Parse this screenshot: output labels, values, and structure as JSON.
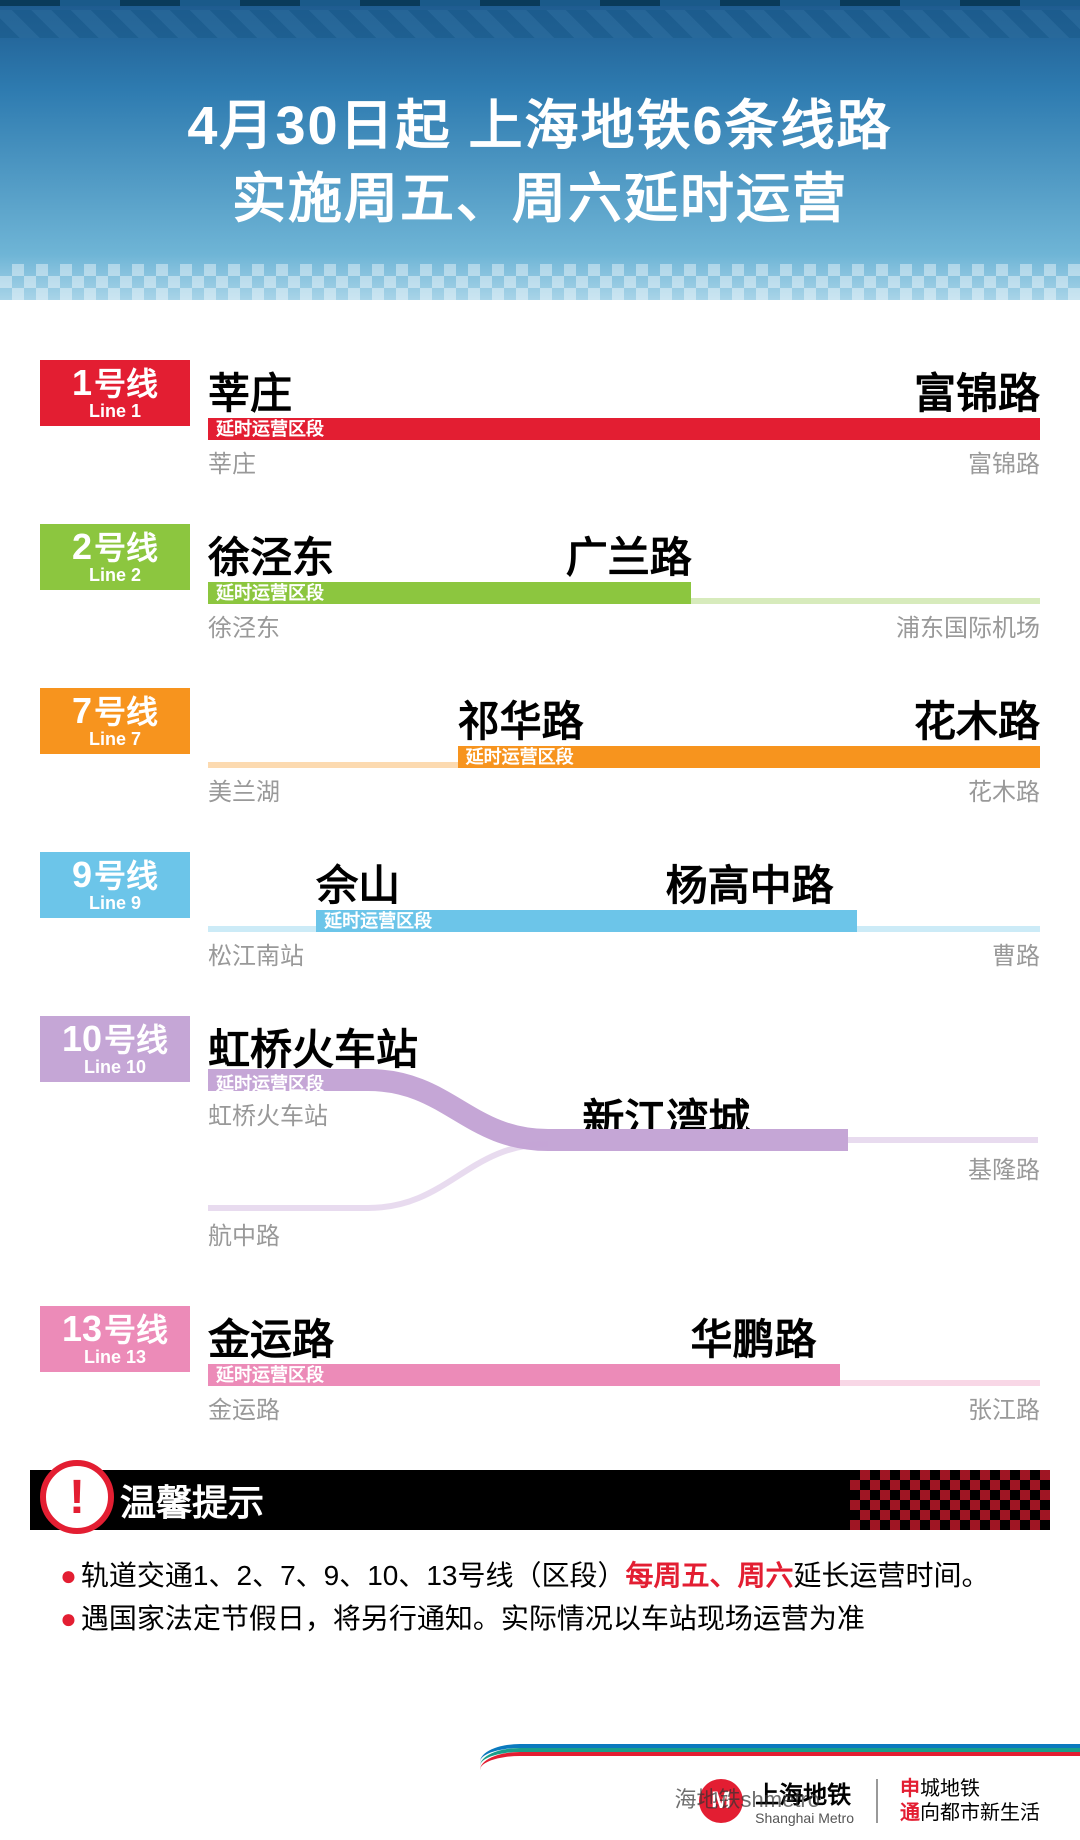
{
  "header": {
    "title_line1": "4月30日起  上海地铁6条线路",
    "title_line2": "实施周五、周六延时运营"
  },
  "ext_label": "延时运营区段",
  "lines": [
    {
      "num": "1",
      "cn": "号线",
      "en": "Line 1",
      "color": "#e31e32",
      "ext_start": 0,
      "ext_end": 100,
      "top_stations": [
        {
          "name": "莘庄",
          "pos": 0
        },
        {
          "name": "富锦路",
          "pos": 100,
          "align": "right"
        }
      ],
      "bottom_stations": [
        {
          "name": "莘庄",
          "pos": 0
        },
        {
          "name": "富锦路",
          "pos": 100,
          "align": "right"
        }
      ]
    },
    {
      "num": "2",
      "cn": "号线",
      "en": "Line 2",
      "color": "#8cc63f",
      "ext_start": 0,
      "ext_end": 58,
      "top_stations": [
        {
          "name": "徐泾东",
          "pos": 0
        },
        {
          "name": "广兰路",
          "pos": 43
        }
      ],
      "bottom_stations": [
        {
          "name": "徐泾东",
          "pos": 0
        },
        {
          "name": "浦东国际机场",
          "pos": 100,
          "align": "right"
        }
      ]
    },
    {
      "num": "7",
      "cn": "号线",
      "en": "Line 7",
      "color": "#f7941e",
      "ext_start": 30,
      "ext_end": 100,
      "top_stations": [
        {
          "name": "祁华路",
          "pos": 30
        },
        {
          "name": "花木路",
          "pos": 100,
          "align": "right"
        }
      ],
      "bottom_stations": [
        {
          "name": "美兰湖",
          "pos": 0
        },
        {
          "name": "花木路",
          "pos": 100,
          "align": "right"
        }
      ]
    },
    {
      "num": "9",
      "cn": "号线",
      "en": "Line 9",
      "color": "#6cc5e9",
      "ext_start": 13,
      "ext_end": 78,
      "top_stations": [
        {
          "name": "佘山",
          "pos": 13
        },
        {
          "name": "杨高中路",
          "pos": 55
        }
      ],
      "bottom_stations": [
        {
          "name": "松江南站",
          "pos": 0
        },
        {
          "name": "曹路",
          "pos": 100,
          "align": "right"
        }
      ]
    },
    {
      "num": "13",
      "cn": "号线",
      "en": "Line 13",
      "color": "#ec8bb8",
      "ext_start": 0,
      "ext_end": 76,
      "top_stations": [
        {
          "name": "金运路",
          "pos": 0
        },
        {
          "name": "华鹏路",
          "pos": 58
        }
      ],
      "bottom_stations": [
        {
          "name": "金运路",
          "pos": 0
        },
        {
          "name": "张江路",
          "pos": 100,
          "align": "right"
        }
      ]
    }
  ],
  "line10": {
    "num": "10",
    "cn": "号线",
    "en": "Line 10",
    "color": "#c5a6d6",
    "top_station": "虹桥火车站",
    "dest_station": "新江湾城",
    "sub1": "虹桥火车站",
    "sub2": "航中路",
    "end_label": "基隆路",
    "ext_label": "延时运营区段"
  },
  "notice": {
    "title": "温馨提示",
    "b1_pre": "轨道交通1、2、7、9、10、13号线（区段）",
    "b1_hl": "每周五、周六",
    "b1_post": "延长运营时间。",
    "b2": "遇国家法定节假日，将另行通知。实际情况以车站现场运营为准"
  },
  "footer": {
    "brand_cn": "上海地铁",
    "brand_en": "Shanghai Metro",
    "slogan1_r": "申",
    "slogan1": "城地铁",
    "slogan2_r": "通",
    "slogan2": "向都市新生活",
    "watermark": "海地铁shmetro"
  }
}
